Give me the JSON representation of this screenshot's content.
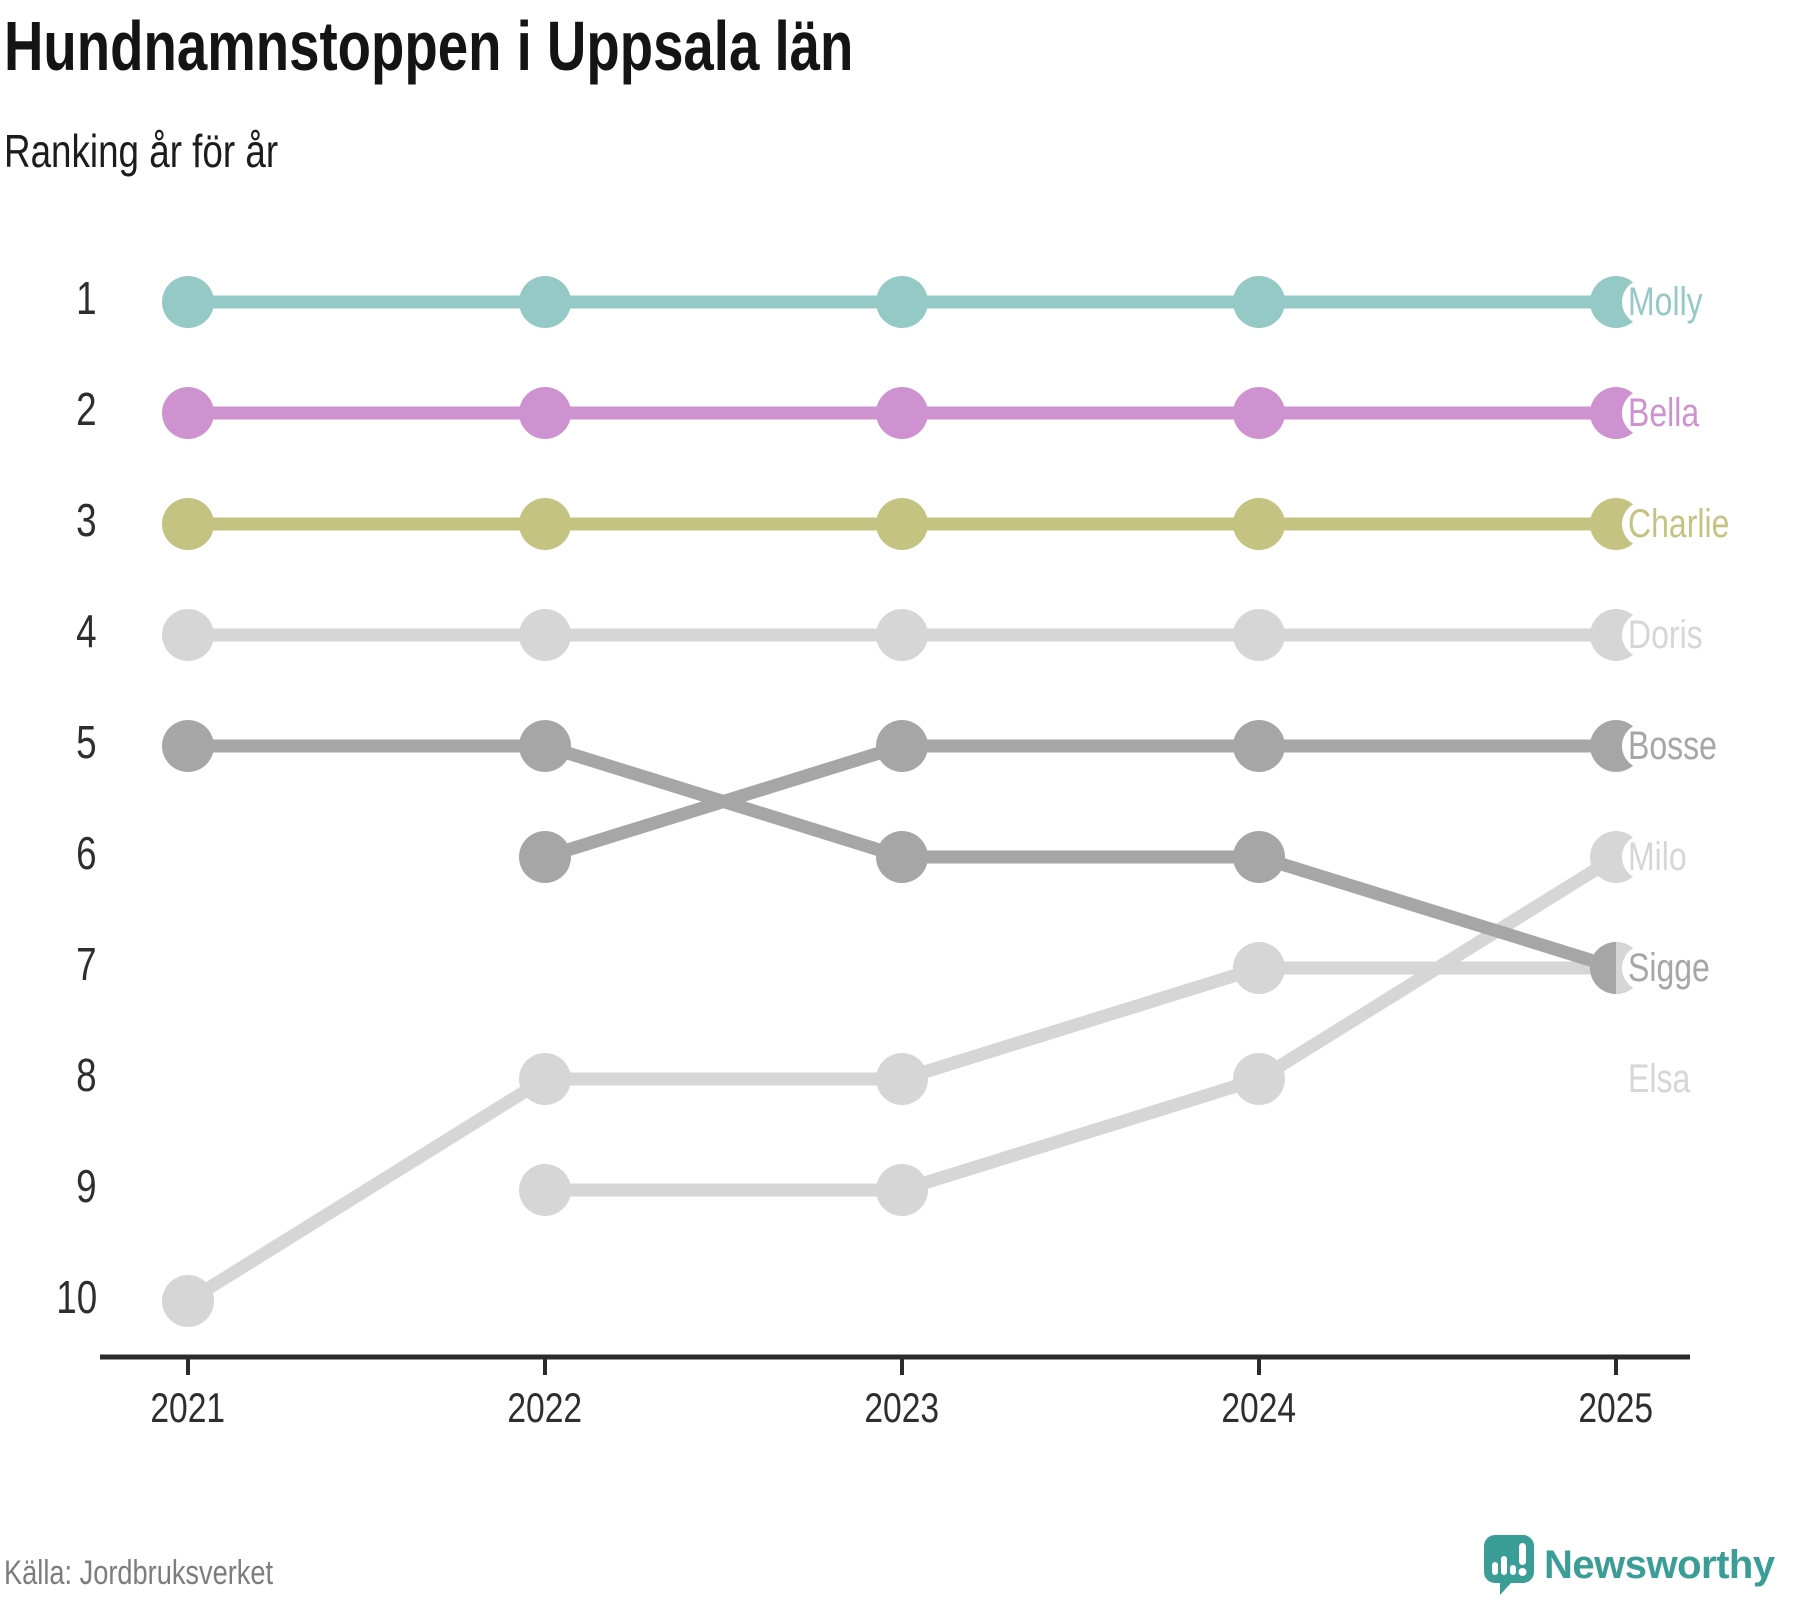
{
  "title": "Hundnamnstoppen i Uppsala län",
  "subtitle": "Ranking år för år",
  "source": "Källa: Jordbruksverket",
  "branding": {
    "name": "Newsworthy",
    "icon": "newsworthy-speech-bubble-chart-icon",
    "color": "#3a9d96"
  },
  "chart_data": {
    "type": "bump",
    "title": "Hundnamnstoppen i Uppsala län",
    "subtitle": "Ranking år för år",
    "x": [
      "2021",
      "2022",
      "2023",
      "2024",
      "2025"
    ],
    "y_ticks": [
      "1",
      "2",
      "3",
      "4",
      "5",
      "6",
      "7",
      "8",
      "9",
      "10"
    ],
    "y_meaning": "rank, 1 = top name, axis inverted (1 at top)",
    "grid": "off",
    "legend": "direct labels at right end of lines",
    "axis_color": "#2b2b2b",
    "series": [
      {
        "name": "Doris",
        "color": "#d6d6d6",
        "values": [
          4,
          4,
          4,
          4,
          4
        ],
        "label_row": 4
      },
      {
        "name": "Elsa",
        "color": "#d6d6d6",
        "values": [
          10,
          8,
          8,
          7,
          7
        ],
        "label_row": 8
      },
      {
        "name": "Milo",
        "color": "#d6d6d6",
        "values": [
          null,
          9,
          9,
          8,
          6
        ],
        "label_row": 6
      },
      {
        "name": "Bosse",
        "color": "#a6a6a6",
        "values": [
          null,
          6,
          5,
          5,
          5
        ],
        "label_row": 5
      },
      {
        "name": "Sigge",
        "color": "#a6a6a6",
        "values": [
          5,
          5,
          6,
          6,
          7
        ],
        "label_row": 7
      },
      {
        "name": "Molly",
        "color": "#95c9c5",
        "values": [
          1,
          1,
          1,
          1,
          1
        ],
        "label_row": 1
      },
      {
        "name": "Bella",
        "color": "#cf92d0",
        "values": [
          2,
          2,
          2,
          2,
          2
        ],
        "label_row": 2
      },
      {
        "name": "Charlie",
        "color": "#c5c382",
        "values": [
          3,
          3,
          3,
          3,
          3
        ],
        "label_row": 3
      }
    ]
  }
}
